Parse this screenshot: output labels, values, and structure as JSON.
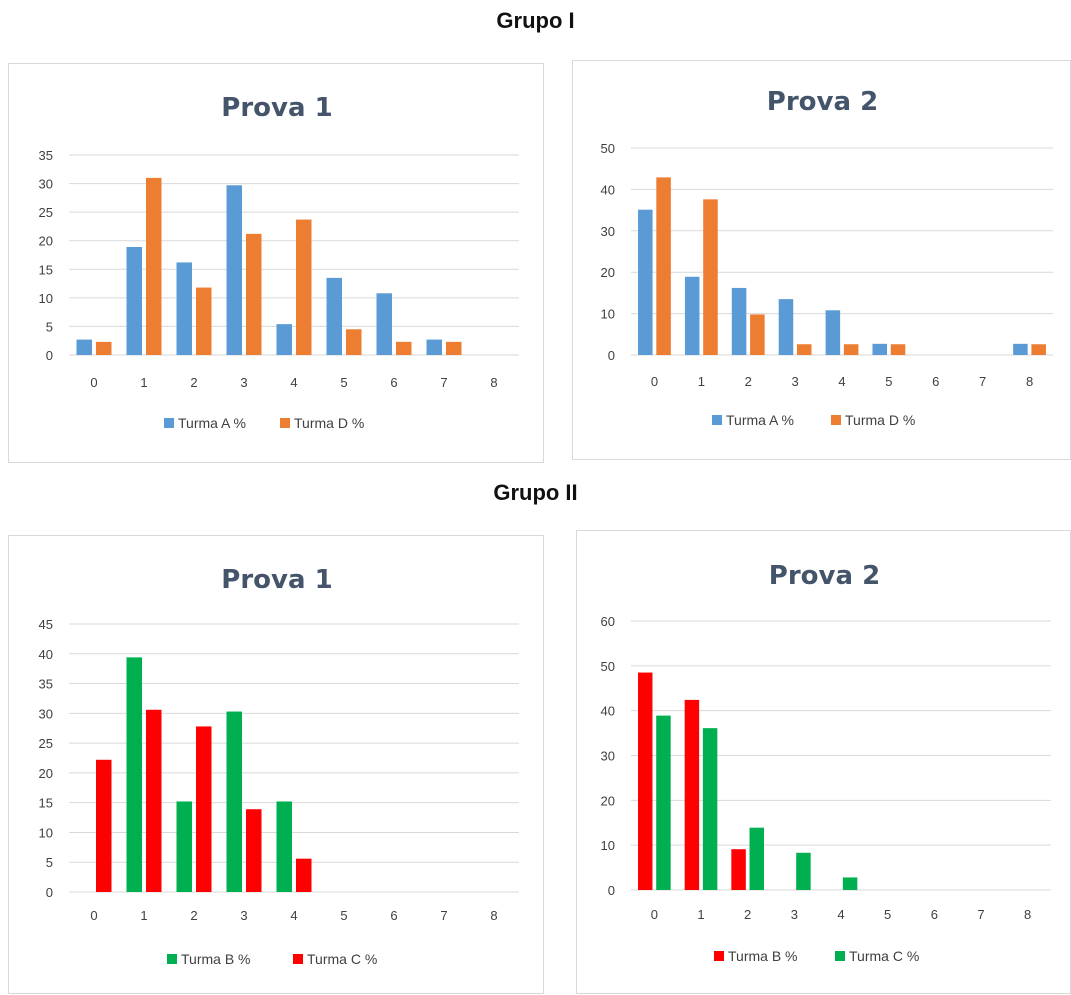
{
  "groups": [
    {
      "title": "Grupo I"
    },
    {
      "title": "Grupo II"
    }
  ],
  "colors": {
    "turma_a": "#5b9bd5",
    "turma_d": "#ed7d31",
    "turma_b_red": "#ff0000",
    "turma_c_green": "#00b050"
  },
  "chart_data": [
    {
      "group": "Grupo I",
      "type": "bar",
      "title": "Prova 1",
      "categories": [
        "0",
        "1",
        "2",
        "3",
        "4",
        "5",
        "6",
        "7",
        "8"
      ],
      "ylim": [
        0,
        35
      ],
      "yticks": [
        0,
        5,
        10,
        15,
        20,
        25,
        30,
        35
      ],
      "grid": true,
      "legend": "bottom",
      "series": [
        {
          "name": "Turma A %",
          "color": "#5b9bd5",
          "values": [
            2.7,
            18.9,
            16.2,
            29.7,
            5.4,
            13.5,
            10.8,
            2.7,
            0
          ]
        },
        {
          "name": "Turma D %",
          "color": "#ed7d31",
          "values": [
            2.3,
            31.0,
            11.8,
            21.2,
            23.7,
            4.5,
            2.3,
            2.3,
            0
          ]
        }
      ]
    },
    {
      "group": "Grupo I",
      "type": "bar",
      "title": "Prova 2",
      "categories": [
        "0",
        "1",
        "2",
        "3",
        "4",
        "5",
        "6",
        "7",
        "8"
      ],
      "ylim": [
        0,
        50
      ],
      "yticks": [
        0,
        10,
        20,
        30,
        40,
        50
      ],
      "grid": true,
      "legend": "bottom",
      "series": [
        {
          "name": "Turma A %",
          "color": "#5b9bd5",
          "values": [
            35.1,
            18.9,
            16.2,
            13.5,
            10.8,
            2.7,
            0,
            0,
            2.7
          ]
        },
        {
          "name": "Turma D %",
          "color": "#ed7d31",
          "values": [
            42.9,
            37.6,
            9.8,
            2.6,
            2.6,
            2.6,
            0,
            0,
            2.6
          ]
        }
      ]
    },
    {
      "group": "Grupo II",
      "type": "bar",
      "title": "Prova 1",
      "categories": [
        "0",
        "1",
        "2",
        "3",
        "4",
        "5",
        "6",
        "7",
        "8"
      ],
      "ylim": [
        0,
        45
      ],
      "yticks": [
        0,
        5,
        10,
        15,
        20,
        25,
        30,
        35,
        40,
        45
      ],
      "grid": true,
      "legend": "bottom",
      "series": [
        {
          "name": "Turma B %",
          "color": "#00b050",
          "values": [
            0,
            39.4,
            15.2,
            30.3,
            15.2,
            0,
            0,
            0,
            0
          ]
        },
        {
          "name": "Turma C %",
          "color": "#ff0000",
          "values": [
            22.2,
            30.6,
            27.8,
            13.9,
            5.6,
            0,
            0,
            0,
            0
          ]
        }
      ]
    },
    {
      "group": "Grupo II",
      "type": "bar",
      "title": "Prova 2",
      "categories": [
        "0",
        "1",
        "2",
        "3",
        "4",
        "5",
        "6",
        "7",
        "8"
      ],
      "ylim": [
        0,
        60
      ],
      "yticks": [
        0,
        10,
        20,
        30,
        40,
        50,
        60
      ],
      "grid": true,
      "legend": "bottom",
      "series": [
        {
          "name": "Turma B %",
          "color": "#ff0000",
          "values": [
            48.5,
            42.4,
            9.1,
            0,
            0,
            0,
            0,
            0,
            0
          ]
        },
        {
          "name": "Turma C %",
          "color": "#00b050",
          "values": [
            38.9,
            36.1,
            13.9,
            8.3,
            2.8,
            0,
            0,
            0,
            0
          ]
        }
      ]
    }
  ]
}
